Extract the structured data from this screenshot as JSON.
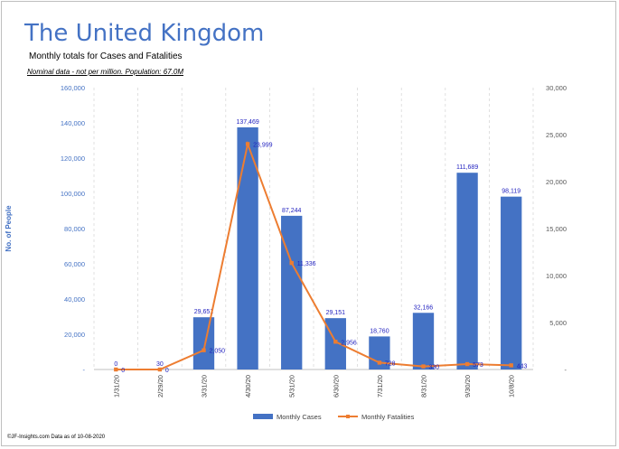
{
  "header": {
    "title": "The United Kingdom",
    "subtitle": "Monthly totals for Cases and Fatalities",
    "note": "Nominal data - not per million.  Population: 67.0M"
  },
  "footer": {
    "text": "©JF-Insights.com  Data as of 10-08-2020"
  },
  "colors": {
    "bars": "#4472c4",
    "line": "#ed7d31",
    "grid": "#d9d9d9",
    "title": "#4472c4"
  },
  "chart_data": {
    "type": "bar",
    "title": "The United Kingdom",
    "ylabel": "No. of People",
    "xlabel": "",
    "categories": [
      "1/31/20",
      "2/29/20",
      "3/31/20",
      "4/30/20",
      "5/31/20",
      "6/30/20",
      "7/31/20",
      "8/31/20",
      "9/30/20",
      "10/8/20"
    ],
    "series": [
      {
        "name": "Monthly Cases",
        "type": "bar",
        "axis": "left",
        "values": [
          0,
          30,
          29651,
          137469,
          87244,
          29151,
          18760,
          32166,
          111689,
          98119
        ],
        "labels": [
          "0",
          "30",
          "29,651",
          "137,469",
          "87,244",
          "29,151",
          "18,760",
          "32,166",
          "111,689",
          "98,119"
        ]
      },
      {
        "name": "Monthly Fatalities",
        "type": "line",
        "axis": "right",
        "values": [
          0,
          0,
          2050,
          23999,
          11336,
          2956,
          728,
          330,
          573,
          443
        ],
        "labels": [
          "0",
          "0",
          "2,050",
          "23,999",
          "11,336",
          "2,956",
          "728",
          "330",
          "573",
          "443"
        ]
      }
    ],
    "ylim": [
      0,
      160000
    ],
    "y2lim": [
      0,
      30000
    ],
    "yticks": [
      "-",
      "20,000",
      "40,000",
      "60,000",
      "80,000",
      "100,000",
      "120,000",
      "140,000",
      "160,000"
    ],
    "ytick_values": [
      0,
      20000,
      40000,
      60000,
      80000,
      100000,
      120000,
      140000,
      160000
    ],
    "y2ticks": [
      "-",
      "5,000",
      "10,000",
      "15,000",
      "20,000",
      "25,000",
      "30,000"
    ],
    "y2tick_values": [
      0,
      5000,
      10000,
      15000,
      20000,
      25000,
      30000
    ],
    "legend_position": "bottom"
  }
}
